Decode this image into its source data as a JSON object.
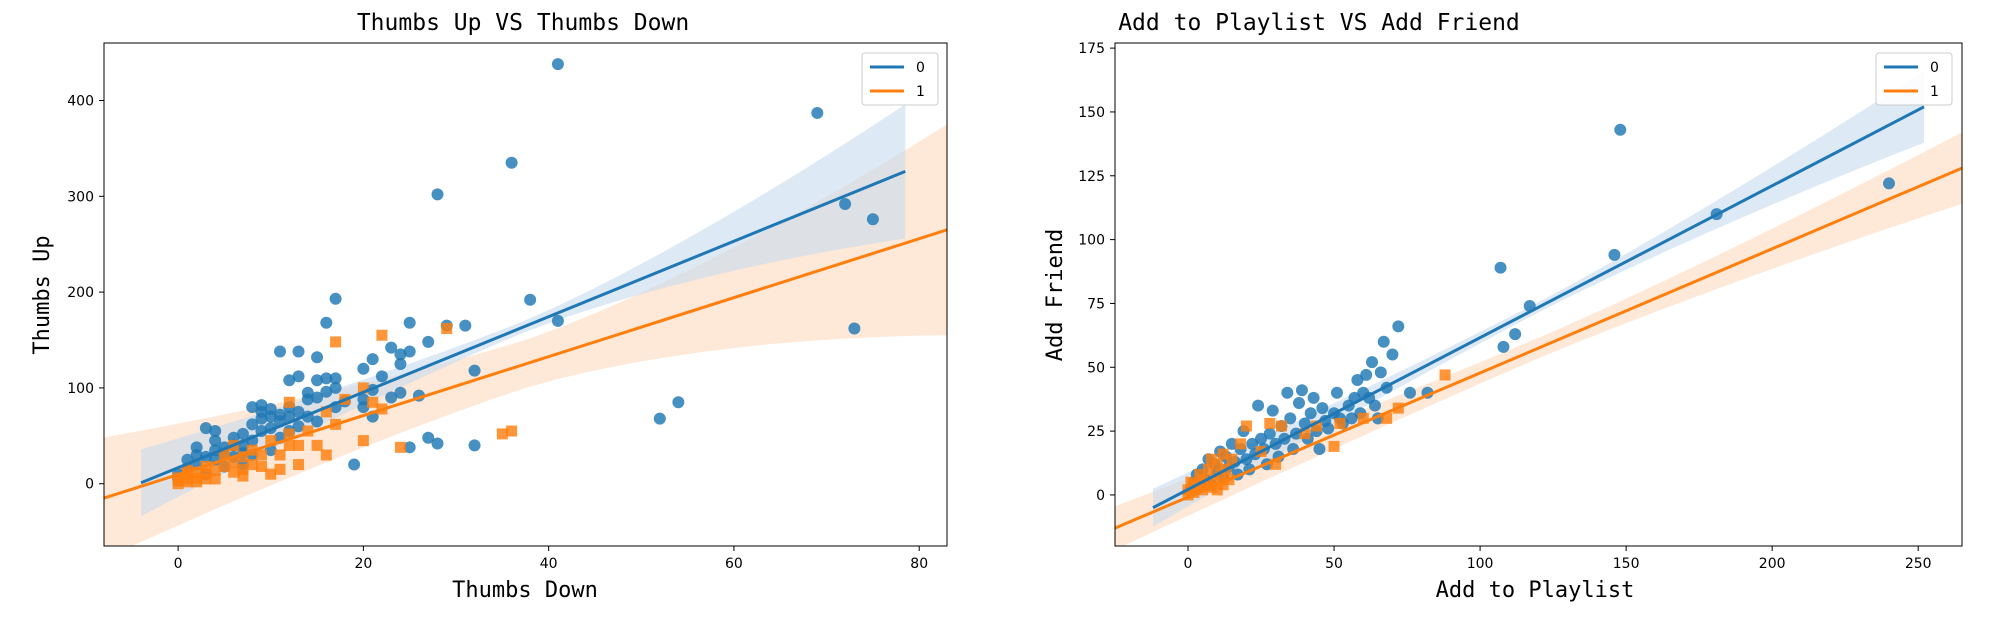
{
  "colors": {
    "series0": "#1f77b4",
    "series1": "#ff7f0e",
    "band0": "#c6dbef",
    "band1": "#fdd9bd"
  },
  "chart_data": [
    {
      "type": "scatter",
      "title": "Thumbs Up  VS  Thumbs Down",
      "xlabel": "Thumbs Down",
      "ylabel": "Thumbs Up",
      "xlim": [
        -8,
        83
      ],
      "ylim": [
        -65,
        460
      ],
      "xticks": [
        0,
        20,
        40,
        60,
        80
      ],
      "yticks": [
        0,
        100,
        200,
        300,
        400
      ],
      "legend_position": "upper-right",
      "series": [
        {
          "name": "0",
          "marker": "circle",
          "fit": {
            "x": [
              -4,
              78.5
            ],
            "y": [
              1,
              326
            ]
          },
          "band_halfwidth": {
            "start": 6,
            "end": 70
          },
          "points": [
            [
              0,
              5
            ],
            [
              0,
              10
            ],
            [
              1,
              15
            ],
            [
              1,
              25
            ],
            [
              2,
              20
            ],
            [
              2,
              30
            ],
            [
              2,
              38
            ],
            [
              3,
              28
            ],
            [
              3,
              58
            ],
            [
              3,
              10
            ],
            [
              4,
              55
            ],
            [
              4,
              45
            ],
            [
              4,
              35
            ],
            [
              4,
              25
            ],
            [
              5,
              38
            ],
            [
              5,
              30
            ],
            [
              5,
              18
            ],
            [
              6,
              40
            ],
            [
              6,
              48
            ],
            [
              6,
              28
            ],
            [
              7,
              52
            ],
            [
              7,
              40
            ],
            [
              7,
              32
            ],
            [
              7,
              20
            ],
            [
              8,
              62
            ],
            [
              8,
              45
            ],
            [
              8,
              80
            ],
            [
              8,
              30
            ],
            [
              9,
              75
            ],
            [
              9,
              68
            ],
            [
              9,
              55
            ],
            [
              9,
              82
            ],
            [
              10,
              70
            ],
            [
              10,
              58
            ],
            [
              10,
              78
            ],
            [
              10,
              35
            ],
            [
              11,
              72
            ],
            [
              11,
              65
            ],
            [
              11,
              138
            ],
            [
              11,
              48
            ],
            [
              12,
              80
            ],
            [
              12,
              70
            ],
            [
              12,
              108
            ],
            [
              12,
              55
            ],
            [
              13,
              112
            ],
            [
              13,
              75
            ],
            [
              13,
              138
            ],
            [
              13,
              60
            ],
            [
              14,
              88
            ],
            [
              14,
              70
            ],
            [
              14,
              95
            ],
            [
              15,
              132
            ],
            [
              15,
              108
            ],
            [
              15,
              90
            ],
            [
              15,
              65
            ],
            [
              16,
              168
            ],
            [
              16,
              110
            ],
            [
              16,
              96
            ],
            [
              17,
              193
            ],
            [
              17,
              110
            ],
            [
              17,
              100
            ],
            [
              17,
              80
            ],
            [
              18,
              86
            ],
            [
              19,
              20
            ],
            [
              20,
              80
            ],
            [
              20,
              88
            ],
            [
              20,
              120
            ],
            [
              21,
              130
            ],
            [
              21,
              98
            ],
            [
              21,
              70
            ],
            [
              22,
              112
            ],
            [
              23,
              90
            ],
            [
              23,
              142
            ],
            [
              24,
              135
            ],
            [
              24,
              125
            ],
            [
              24,
              95
            ],
            [
              25,
              168
            ],
            [
              25,
              138
            ],
            [
              25,
              38
            ],
            [
              26,
              92
            ],
            [
              27,
              148
            ],
            [
              27,
              48
            ],
            [
              28,
              42
            ],
            [
              28,
              302
            ],
            [
              29,
              165
            ],
            [
              31,
              165
            ],
            [
              32,
              118
            ],
            [
              32,
              40
            ],
            [
              36,
              335
            ],
            [
              38,
              192
            ],
            [
              41,
              438
            ],
            [
              41,
              170
            ],
            [
              52,
              68
            ],
            [
              54,
              85
            ],
            [
              69,
              387
            ],
            [
              72,
              292
            ],
            [
              73,
              162
            ],
            [
              75,
              276
            ]
          ]
        },
        {
          "name": "1",
          "marker": "square",
          "fit": {
            "x": [
              -8,
              83
            ],
            "y": [
              -15,
              265
            ]
          },
          "band_halfwidth": {
            "start": 25,
            "end": 110
          },
          "points": [
            [
              0,
              0
            ],
            [
              0,
              3
            ],
            [
              0,
              6
            ],
            [
              1,
              2
            ],
            [
              1,
              5
            ],
            [
              1,
              10
            ],
            [
              1,
              14
            ],
            [
              2,
              2
            ],
            [
              2,
              6
            ],
            [
              2,
              12
            ],
            [
              3,
              5
            ],
            [
              3,
              10
            ],
            [
              3,
              18
            ],
            [
              4,
              5
            ],
            [
              4,
              14
            ],
            [
              5,
              18
            ],
            [
              5,
              30
            ],
            [
              6,
              12
            ],
            [
              6,
              22
            ],
            [
              6,
              40
            ],
            [
              7,
              15
            ],
            [
              7,
              28
            ],
            [
              7,
              8
            ],
            [
              8,
              20
            ],
            [
              8,
              35
            ],
            [
              9,
              18
            ],
            [
              9,
              30
            ],
            [
              10,
              10
            ],
            [
              10,
              45
            ],
            [
              11,
              15
            ],
            [
              11,
              30
            ],
            [
              12,
              40
            ],
            [
              12,
              85
            ],
            [
              12,
              52
            ],
            [
              13,
              20
            ],
            [
              13,
              40
            ],
            [
              14,
              55
            ],
            [
              15,
              40
            ],
            [
              16,
              30
            ],
            [
              16,
              75
            ],
            [
              17,
              62
            ],
            [
              17,
              148
            ],
            [
              18,
              88
            ],
            [
              20,
              45
            ],
            [
              20,
              100
            ],
            [
              21,
              85
            ],
            [
              22,
              78
            ],
            [
              22,
              155
            ],
            [
              24,
              38
            ],
            [
              29,
              162
            ],
            [
              35,
              52
            ],
            [
              36,
              55
            ]
          ]
        }
      ]
    },
    {
      "type": "scatter",
      "title": "Add to Playlist  VS  Add Friend",
      "xlabel": "Add to Playlist",
      "ylabel": "Add Friend",
      "xlim": [
        -25,
        265
      ],
      "ylim": [
        -20,
        177
      ],
      "xticks": [
        0,
        50,
        100,
        150,
        200,
        250
      ],
      "yticks": [
        0,
        25,
        50,
        75,
        100,
        125,
        150,
        175
      ],
      "legend_position": "upper-right",
      "series": [
        {
          "name": "0",
          "marker": "circle",
          "fit": {
            "x": [
              -12,
              252
            ],
            "y": [
              -5,
              152
            ]
          },
          "band_halfwidth": {
            "start": 2,
            "end": 14
          },
          "points": [
            [
              1,
              2
            ],
            [
              2,
              5
            ],
            [
              3,
              8
            ],
            [
              4,
              3
            ],
            [
              5,
              10
            ],
            [
              6,
              6
            ],
            [
              7,
              14
            ],
            [
              8,
              4
            ],
            [
              9,
              12
            ],
            [
              10,
              9
            ],
            [
              11,
              17
            ],
            [
              12,
              7
            ],
            [
              13,
              15
            ],
            [
              14,
              11
            ],
            [
              15,
              20
            ],
            [
              16,
              13
            ],
            [
              17,
              8
            ],
            [
              18,
              18
            ],
            [
              19,
              25
            ],
            [
              20,
              14
            ],
            [
              21,
              10
            ],
            [
              22,
              20
            ],
            [
              23,
              16
            ],
            [
              24,
              35
            ],
            [
              25,
              22
            ],
            [
              26,
              18
            ],
            [
              27,
              12
            ],
            [
              28,
              24
            ],
            [
              29,
              33
            ],
            [
              30,
              20
            ],
            [
              31,
              15
            ],
            [
              32,
              27
            ],
            [
              33,
              22
            ],
            [
              34,
              40
            ],
            [
              35,
              30
            ],
            [
              36,
              18
            ],
            [
              37,
              24
            ],
            [
              38,
              36
            ],
            [
              39,
              41
            ],
            [
              40,
              28
            ],
            [
              41,
              22
            ],
            [
              42,
              32
            ],
            [
              43,
              38
            ],
            [
              44,
              25
            ],
            [
              45,
              18
            ],
            [
              46,
              34
            ],
            [
              47,
              29
            ],
            [
              48,
              26
            ],
            [
              50,
              32
            ],
            [
              51,
              40
            ],
            [
              52,
              30
            ],
            [
              53,
              28
            ],
            [
              55,
              35
            ],
            [
              56,
              30
            ],
            [
              57,
              38
            ],
            [
              58,
              45
            ],
            [
              59,
              32
            ],
            [
              60,
              40
            ],
            [
              61,
              47
            ],
            [
              62,
              38
            ],
            [
              63,
              52
            ],
            [
              64,
              35
            ],
            [
              65,
              30
            ],
            [
              66,
              48
            ],
            [
              67,
              60
            ],
            [
              68,
              42
            ],
            [
              70,
              55
            ],
            [
              72,
              66
            ],
            [
              76,
              40
            ],
            [
              82,
              40
            ],
            [
              107,
              89
            ],
            [
              108,
              58
            ],
            [
              112,
              63
            ],
            [
              117,
              74
            ],
            [
              146,
              94
            ],
            [
              148,
              143
            ],
            [
              181,
              110
            ],
            [
              240,
              122
            ]
          ]
        },
        {
          "name": "1",
          "marker": "square",
          "fit": {
            "x": [
              -25,
              265
            ],
            "y": [
              -13,
              128
            ]
          },
          "band_halfwidth": {
            "start": 4,
            "end": 14
          },
          "points": [
            [
              0,
              0
            ],
            [
              0,
              2
            ],
            [
              1,
              5
            ],
            [
              2,
              1
            ],
            [
              2,
              4
            ],
            [
              3,
              3
            ],
            [
              4,
              8
            ],
            [
              5,
              2
            ],
            [
              5,
              6
            ],
            [
              6,
              4
            ],
            [
              7,
              10
            ],
            [
              8,
              3
            ],
            [
              8,
              14
            ],
            [
              9,
              6
            ],
            [
              10,
              12
            ],
            [
              10,
              2
            ],
            [
              11,
              8
            ],
            [
              12,
              16
            ],
            [
              12,
              4
            ],
            [
              13,
              10
            ],
            [
              14,
              6
            ],
            [
              15,
              14
            ],
            [
              18,
              20
            ],
            [
              20,
              27
            ],
            [
              25,
              17
            ],
            [
              28,
              28
            ],
            [
              30,
              12
            ],
            [
              32,
              27
            ],
            [
              40,
              24
            ],
            [
              44,
              27
            ],
            [
              50,
              19
            ],
            [
              52,
              28
            ],
            [
              60,
              30
            ],
            [
              68,
              30
            ],
            [
              72,
              34
            ],
            [
              88,
              47
            ]
          ]
        }
      ]
    }
  ]
}
